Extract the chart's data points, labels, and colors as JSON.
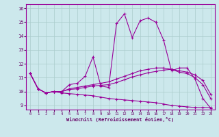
{
  "xlabel": "Windchill (Refroidissement éolien,°C)",
  "bg_color": "#cce8ec",
  "line_color": "#990099",
  "grid_color": "#aacccc",
  "xlim": [
    -0.5,
    23.5
  ],
  "ylim": [
    8.7,
    16.3
  ],
  "xticks": [
    0,
    1,
    2,
    3,
    4,
    5,
    6,
    7,
    8,
    9,
    10,
    11,
    12,
    13,
    14,
    15,
    16,
    17,
    18,
    19,
    20,
    21,
    22,
    23
  ],
  "yticks": [
    9,
    10,
    11,
    12,
    13,
    14,
    15,
    16
  ],
  "series": [
    [
      11.3,
      10.2,
      9.9,
      10.0,
      10.0,
      10.5,
      10.6,
      11.1,
      12.5,
      10.4,
      10.3,
      14.9,
      15.6,
      13.9,
      15.1,
      15.3,
      15.0,
      13.7,
      11.5,
      11.7,
      11.7,
      10.9,
      9.5,
      8.8
    ],
    [
      11.3,
      10.2,
      9.9,
      10.0,
      10.0,
      10.2,
      10.3,
      10.4,
      10.5,
      10.6,
      10.7,
      10.9,
      11.1,
      11.3,
      11.5,
      11.6,
      11.7,
      11.7,
      11.6,
      11.5,
      11.4,
      11.2,
      10.8,
      9.8
    ],
    [
      11.3,
      10.2,
      9.9,
      10.0,
      10.0,
      10.15,
      10.2,
      10.3,
      10.4,
      10.45,
      10.5,
      10.65,
      10.85,
      11.05,
      11.2,
      11.35,
      11.45,
      11.55,
      11.6,
      11.4,
      11.3,
      11.0,
      10.5,
      9.5
    ],
    [
      11.3,
      10.2,
      9.9,
      10.0,
      9.9,
      9.85,
      9.8,
      9.75,
      9.7,
      9.6,
      9.5,
      9.45,
      9.4,
      9.35,
      9.3,
      9.25,
      9.2,
      9.1,
      9.0,
      8.95,
      8.9,
      8.85,
      8.85,
      8.85
    ]
  ]
}
